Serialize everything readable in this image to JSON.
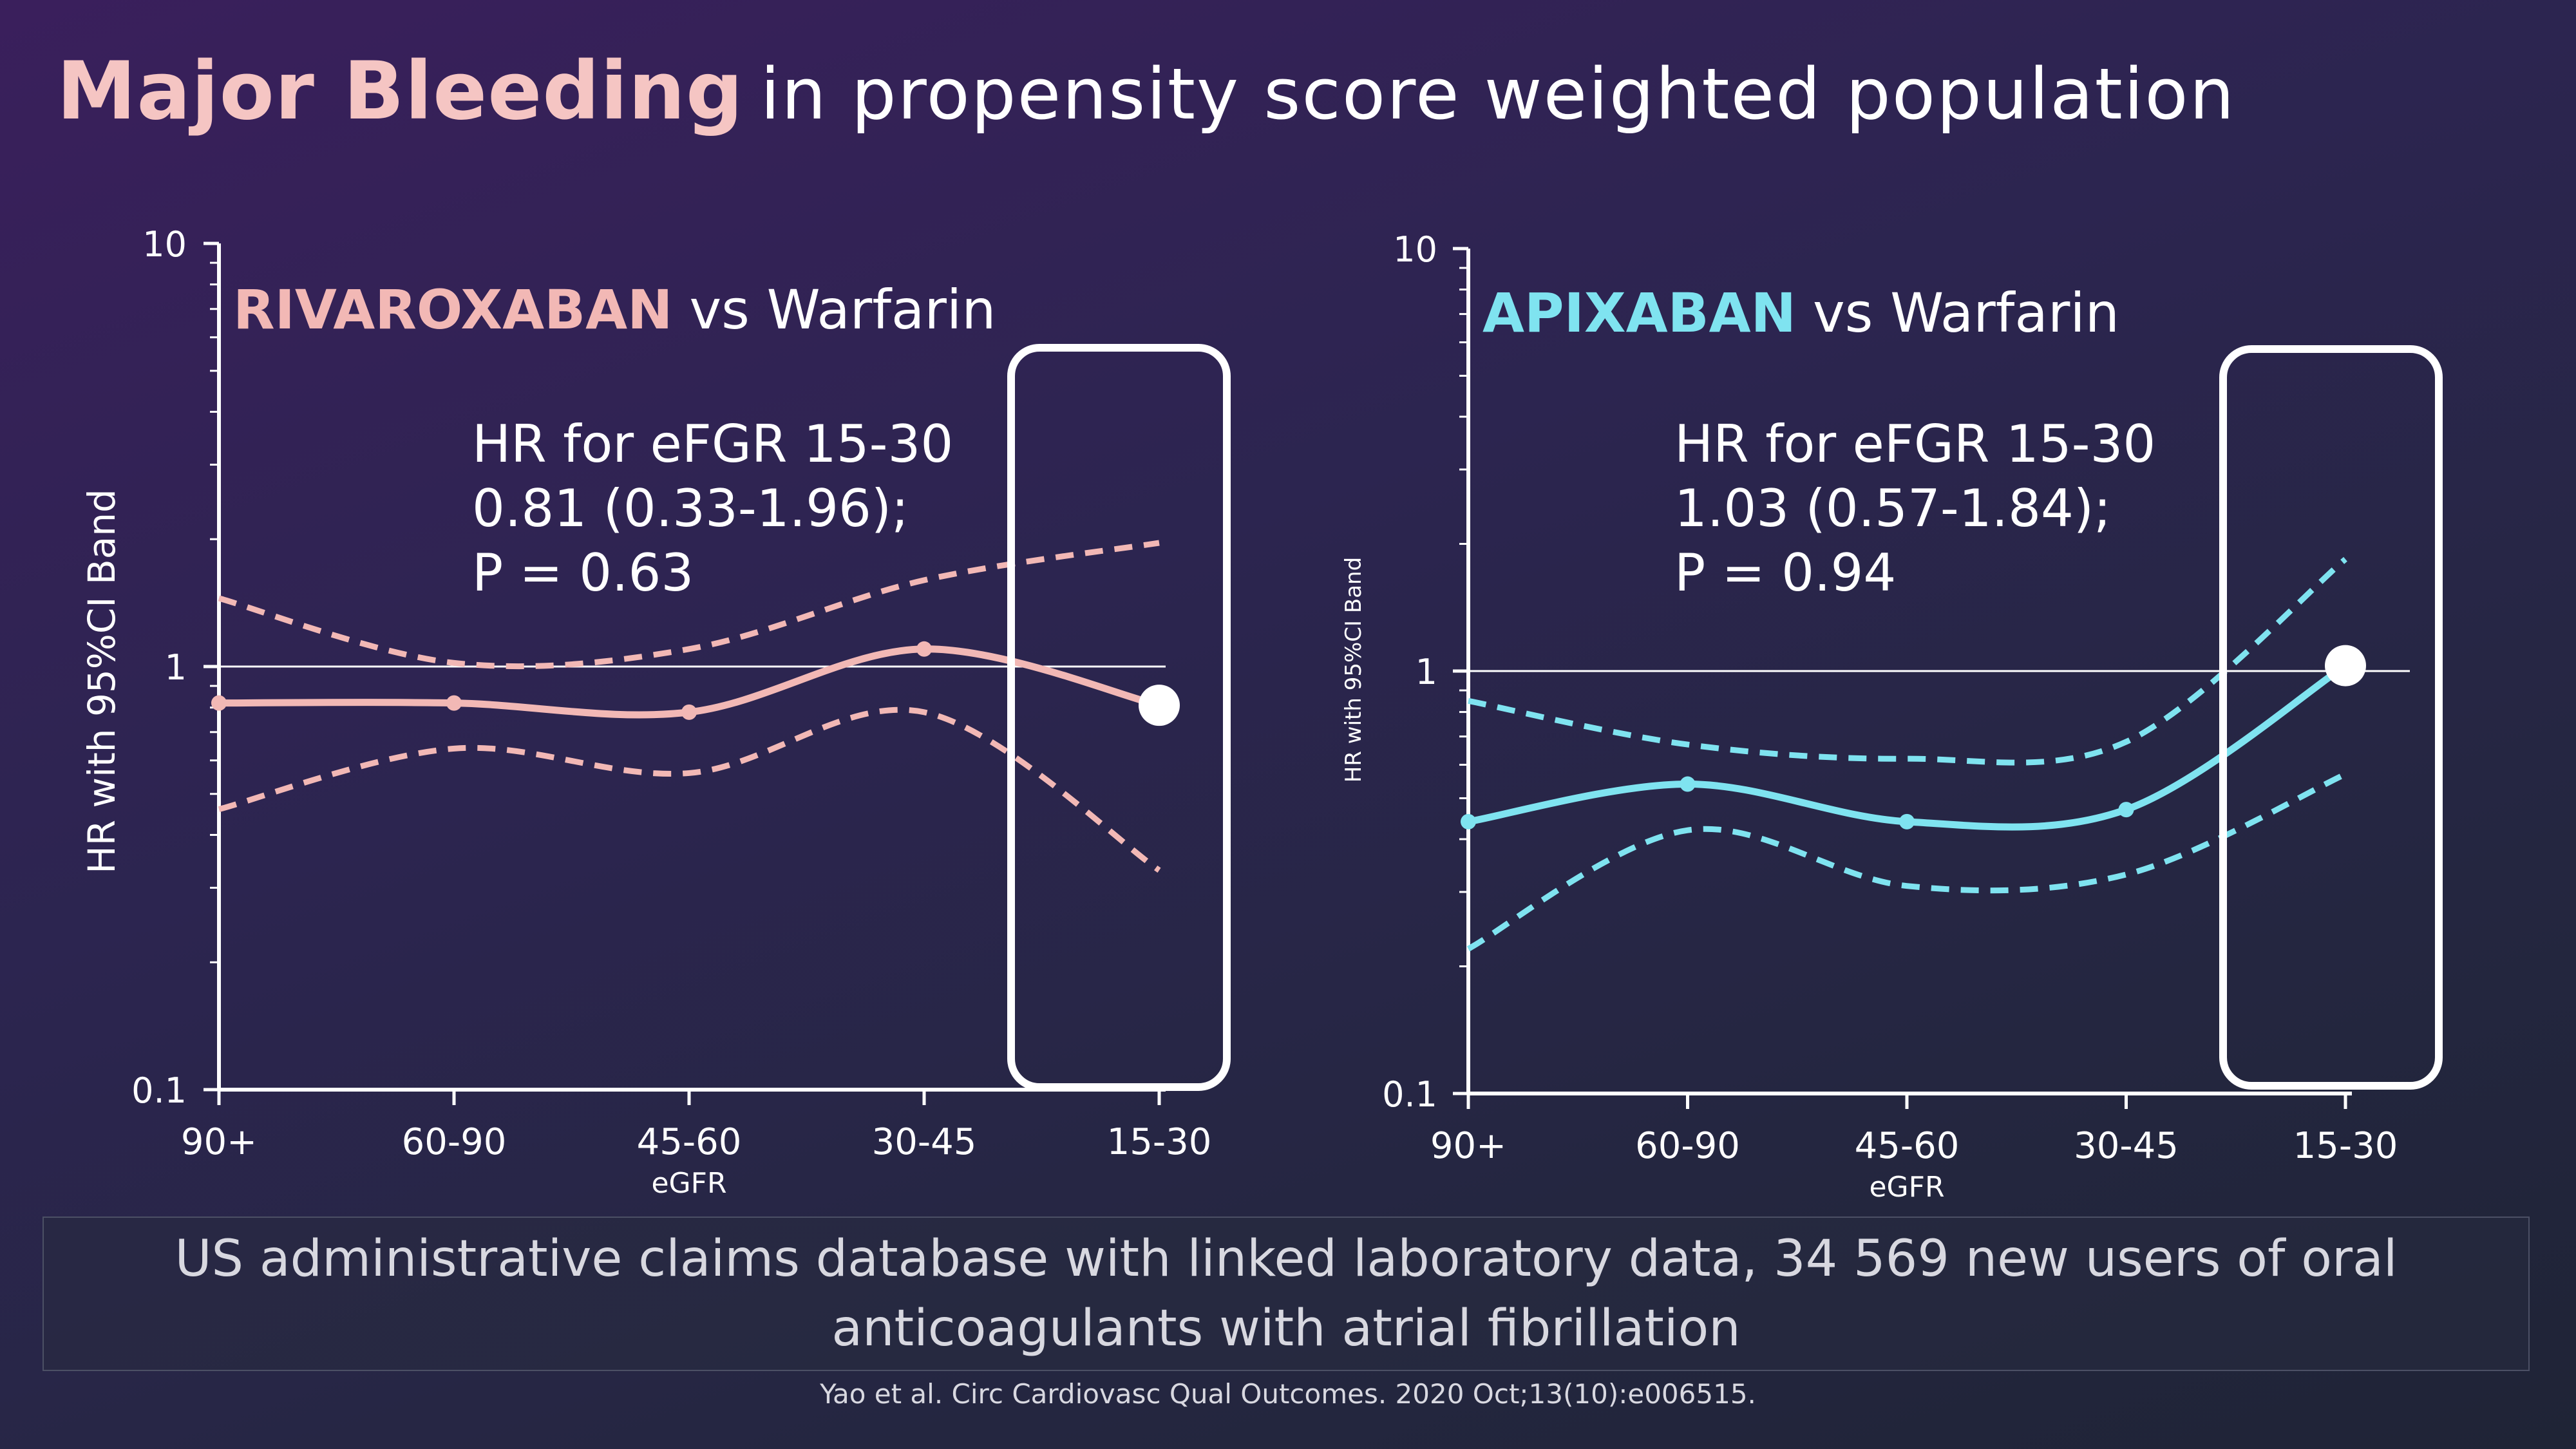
{
  "title": {
    "strong": "Major Bleeding",
    "rest": "in propensity score weighted population"
  },
  "colors": {
    "rivaroxaban": "#f2b8b5",
    "apixaban": "#7fe3f0",
    "highlight_box": "#ffffff"
  },
  "chart_data": [
    {
      "type": "line",
      "drug": "RIVAROXABAN",
      "comparator": "vs Warfarin",
      "categories": [
        "90+",
        "60-90",
        "45-60",
        "30-45",
        "15-30"
      ],
      "xlabel": "eGFR",
      "ylabel": "HR with 95%CI Band",
      "yscale": "log",
      "ylim": [
        0.1,
        10
      ],
      "yticks": [
        "0.1",
        "1",
        "10"
      ],
      "reference_line": 1,
      "series": [
        {
          "role": "hr",
          "values": [
            0.82,
            0.82,
            0.78,
            1.1,
            0.81
          ]
        },
        {
          "role": "upper_ci",
          "values": [
            1.45,
            1.02,
            1.1,
            1.6,
            1.96
          ]
        },
        {
          "role": "lower_ci",
          "values": [
            0.46,
            0.64,
            0.56,
            0.78,
            0.33
          ]
        }
      ],
      "highlight": {
        "category": "15-30",
        "value": 0.81
      },
      "annotation": [
        "HR for eFGR 15-30",
        "0.81 (0.33-1.96);",
        "P = 0.63"
      ]
    },
    {
      "type": "line",
      "drug": "APIXABAN",
      "comparator": "vs Warfarin",
      "categories": [
        "90+",
        "60-90",
        "45-60",
        "30-45",
        "15-30"
      ],
      "xlabel": "eGFR",
      "ylabel": "HR with 95%CI Band",
      "yscale": "log",
      "ylim": [
        0.1,
        10
      ],
      "yticks": [
        "0.1",
        "1",
        "10"
      ],
      "reference_line": 1,
      "series": [
        {
          "role": "hr",
          "values": [
            0.44,
            0.54,
            0.44,
            0.47,
            1.03
          ]
        },
        {
          "role": "upper_ci",
          "values": [
            0.85,
            0.67,
            0.62,
            0.68,
            1.84
          ]
        },
        {
          "role": "lower_ci",
          "values": [
            0.22,
            0.42,
            0.31,
            0.33,
            0.57
          ]
        }
      ],
      "highlight": {
        "category": "15-30",
        "value": 1.03
      },
      "annotation": [
        "HR for eFGR 15-30",
        "1.03 (0.57-1.84);",
        "P = 0.94"
      ]
    }
  ],
  "footnote": "US administrative claims database with linked laboratory data, 34 569 new users of oral anticoagulants with atrial fibrillation",
  "citation": "Yao et al. Circ Cardiovasc Qual Outcomes. 2020 Oct;13(10):e006515."
}
